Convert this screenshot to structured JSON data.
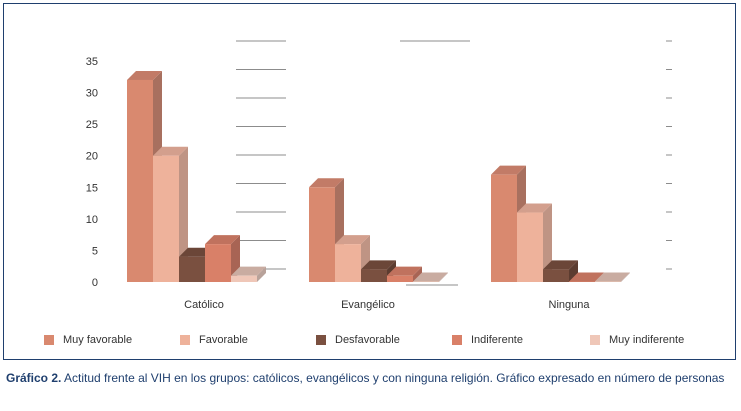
{
  "caption": {
    "label": "Gráfico 2.",
    "text": "Actitud frente al VIH en los grupos: católicos, evangélicos y con ninguna religión. Gráfico expresado en número de personas"
  },
  "chart_data": {
    "type": "bar",
    "categories": [
      "Católico",
      "Evangélico",
      "Ninguna"
    ],
    "series": [
      {
        "name": "Muy favorable",
        "values": [
          32,
          15,
          17
        ],
        "color": "#d9896f",
        "top": "#c27b67",
        "side": "#a8705f"
      },
      {
        "name": "Favorable",
        "values": [
          20,
          6,
          11
        ],
        "color": "#eeb29b",
        "top": "#d39f8d",
        "side": "#bf9484"
      },
      {
        "name": "Desfavorable",
        "values": [
          4,
          2,
          2
        ],
        "color": "#7a5040",
        "top": "#6b4638",
        "side": "#5c3c30"
      },
      {
        "name": "Indiferente",
        "values": [
          6,
          1,
          0
        ],
        "color": "#d98068",
        "top": "#c0725e",
        "side": "#a86454"
      },
      {
        "name": "Muy indiferente",
        "values": [
          1,
          0,
          0
        ],
        "color": "#efc7b8",
        "top": "#c9aca1",
        "side": "#b8a29a"
      }
    ],
    "y_ticks": [
      "0",
      "5",
      "10",
      "15",
      "20",
      "25",
      "30",
      "35"
    ],
    "ylim": [
      0,
      35
    ],
    "legend_position": "bottom",
    "three_d": true
  }
}
